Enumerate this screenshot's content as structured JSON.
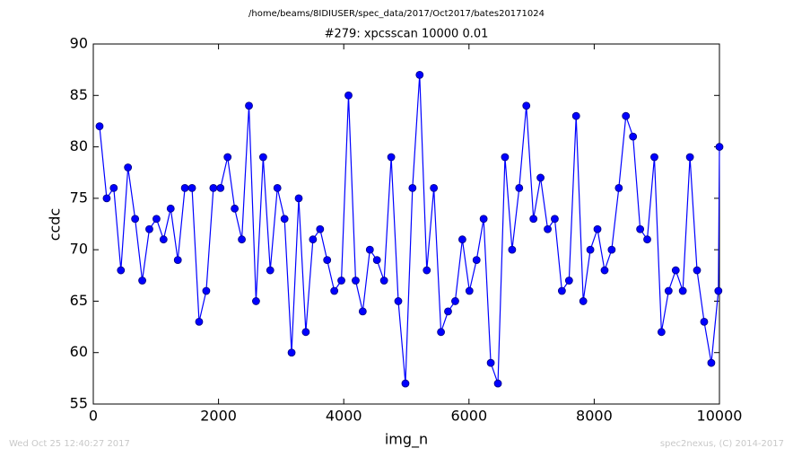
{
  "chart_data": {
    "type": "line",
    "suptitle": "/home/beams/8IDIUSER/spec_data/2017/Oct2017/bates20171024",
    "title": "#279: xpcsscan 10000 0.01",
    "xlabel": "img_n",
    "ylabel": "ccdc",
    "x": [
      100,
      214,
      327,
      441,
      554,
      668,
      782,
      895,
      1009,
      1122,
      1236,
      1350,
      1463,
      1577,
      1690,
      1804,
      1918,
      2031,
      2145,
      2258,
      2372,
      2486,
      2599,
      2713,
      2826,
      2940,
      3054,
      3167,
      3281,
      3394,
      3508,
      3622,
      3735,
      3849,
      3962,
      4076,
      4190,
      4303,
      4417,
      4530,
      4644,
      4758,
      4871,
      4985,
      5098,
      5212,
      5326,
      5439,
      5553,
      5666,
      5780,
      5894,
      6007,
      6121,
      6234,
      6348,
      6462,
      6575,
      6689,
      6802,
      6916,
      7030,
      7143,
      7257,
      7370,
      7484,
      7598,
      7711,
      7825,
      7938,
      8052,
      8166,
      8279,
      8393,
      8506,
      8620,
      8734,
      8847,
      8961,
      9074,
      9188,
      9302,
      9415,
      9529,
      9642,
      9756,
      9870,
      9983,
      10000
    ],
    "series": [
      {
        "color": "#0000ff",
        "marker_edge": "#000080",
        "values": [
          82,
          75,
          76,
          68,
          78,
          73,
          67,
          72,
          73,
          71,
          74,
          69,
          76,
          76,
          63,
          66,
          76,
          76,
          79,
          74,
          71,
          84,
          65,
          79,
          68,
          76,
          73,
          60,
          75,
          62,
          71,
          72,
          69,
          66,
          67,
          85,
          67,
          64,
          70,
          69,
          67,
          79,
          65,
          57,
          76,
          87,
          68,
          76,
          62,
          64,
          65,
          71,
          66,
          69,
          73,
          59,
          57,
          79,
          70,
          76,
          84,
          73,
          77,
          72,
          73,
          66,
          67,
          83,
          65,
          70,
          72,
          68,
          70,
          76,
          83,
          81,
          72,
          71,
          79,
          62,
          66,
          68,
          66,
          79,
          68,
          63,
          59,
          66,
          80
        ]
      }
    ],
    "xlim": [
      0,
      10000
    ],
    "ylim": [
      55,
      90
    ],
    "xticks": [
      0,
      2000,
      4000,
      6000,
      8000,
      10000
    ],
    "yticks": [
      55,
      60,
      65,
      70,
      75,
      80,
      85,
      90
    ],
    "grid": false
  },
  "footer": {
    "timestamp": "Wed Oct 25 12:40:27 2017",
    "credit": "spec2nexus, (C) 2014-2017"
  }
}
